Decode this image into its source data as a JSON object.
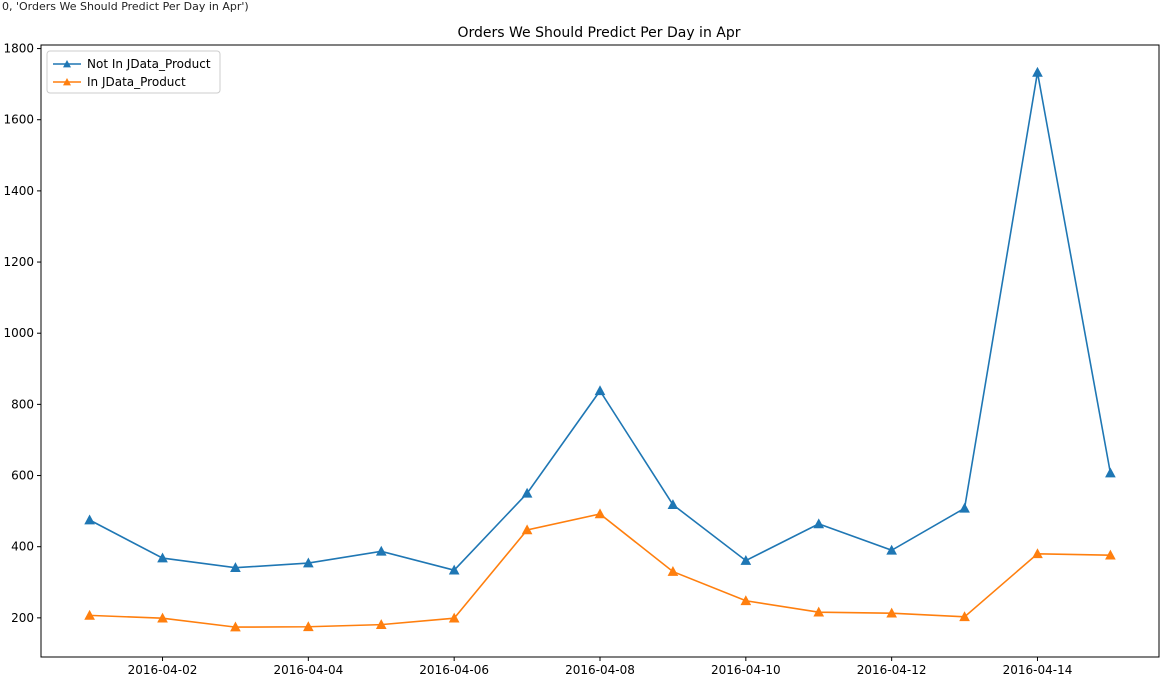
{
  "header_text": "0, 'Orders We Should Predict Per Day in Apr')",
  "chart_data": {
    "type": "line",
    "title": "Orders We Should Predict Per Day in Apr",
    "xlabel": "",
    "ylabel": "",
    "x": [
      "2016-04-01",
      "2016-04-02",
      "2016-04-03",
      "2016-04-04",
      "2016-04-05",
      "2016-04-06",
      "2016-04-07",
      "2016-04-08",
      "2016-04-09",
      "2016-04-10",
      "2016-04-11",
      "2016-04-12",
      "2016-04-13",
      "2016-04-14",
      "2016-04-15"
    ],
    "xticks": [
      "2016-04-02",
      "2016-04-04",
      "2016-04-06",
      "2016-04-08",
      "2016-04-10",
      "2016-04-12",
      "2016-04-14"
    ],
    "yticks": [
      200,
      400,
      600,
      800,
      1000,
      1200,
      1400,
      1600,
      1800
    ],
    "ylim": [
      90,
      1810
    ],
    "xlim": [
      "2016-03-31T08:00",
      "2016-04-15T16:00"
    ],
    "grid": false,
    "legend": "top-left",
    "marker": "triangle",
    "series": [
      {
        "name": "Not In JData_Product",
        "color": "#1f77b4",
        "values": [
          475,
          368,
          341,
          354,
          387,
          334,
          550,
          838,
          518,
          361,
          464,
          390,
          508,
          1733,
          607
        ]
      },
      {
        "name": "In JData_Product",
        "color": "#ff7f0e",
        "values": [
          207,
          199,
          174,
          175,
          181,
          199,
          447,
          492,
          330,
          248,
          216,
          213,
          203,
          380,
          376
        ]
      }
    ]
  }
}
